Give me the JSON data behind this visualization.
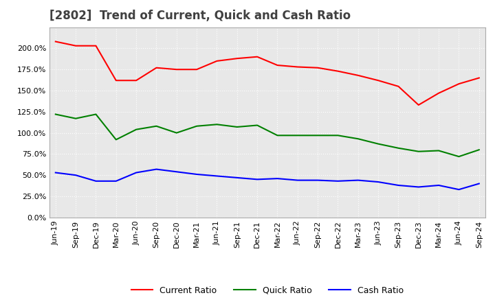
{
  "title": "[2802]  Trend of Current, Quick and Cash Ratio",
  "x_labels": [
    "Jun-19",
    "Sep-19",
    "Dec-19",
    "Mar-20",
    "Jun-20",
    "Sep-20",
    "Dec-20",
    "Mar-21",
    "Jun-21",
    "Sep-21",
    "Dec-21",
    "Mar-22",
    "Jun-22",
    "Sep-22",
    "Dec-22",
    "Mar-23",
    "Jun-23",
    "Sep-23",
    "Dec-23",
    "Mar-24",
    "Jun-24",
    "Sep-24"
  ],
  "current_ratio": [
    2.08,
    2.03,
    2.03,
    1.62,
    1.62,
    1.77,
    1.75,
    1.75,
    1.85,
    1.88,
    1.9,
    1.8,
    1.78,
    1.77,
    1.73,
    1.68,
    1.62,
    1.55,
    1.33,
    1.47,
    1.58,
    1.65
  ],
  "quick_ratio": [
    1.22,
    1.17,
    1.22,
    0.92,
    1.04,
    1.08,
    1.0,
    1.08,
    1.1,
    1.07,
    1.09,
    0.97,
    0.97,
    0.97,
    0.97,
    0.93,
    0.87,
    0.82,
    0.78,
    0.79,
    0.72,
    0.8
  ],
  "cash_ratio": [
    0.53,
    0.5,
    0.43,
    0.43,
    0.53,
    0.57,
    0.54,
    0.51,
    0.49,
    0.47,
    0.45,
    0.46,
    0.44,
    0.44,
    0.43,
    0.44,
    0.42,
    0.38,
    0.36,
    0.38,
    0.33,
    0.4
  ],
  "current_color": "#ff0000",
  "quick_color": "#008000",
  "cash_color": "#0000ff",
  "ylim": [
    0.0,
    2.25
  ],
  "yticks": [
    0.0,
    0.25,
    0.5,
    0.75,
    1.0,
    1.25,
    1.5,
    1.75,
    2.0
  ],
  "background_color": "#ffffff",
  "plot_bg_color": "#e8e8e8",
  "grid_color": "#ffffff",
  "title_fontsize": 12,
  "legend_fontsize": 9,
  "tick_fontsize": 8
}
